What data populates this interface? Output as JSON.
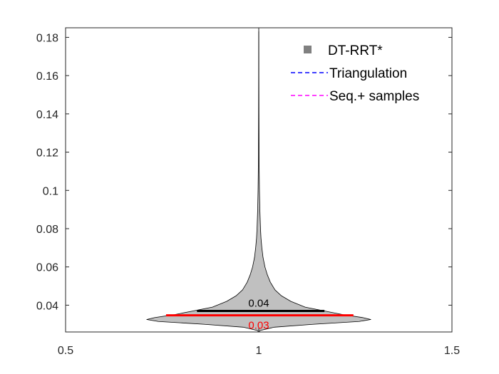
{
  "chart_data": {
    "type": "violin",
    "title": "",
    "xlabel": "",
    "ylabel": "",
    "xlim": [
      0.5,
      1.5
    ],
    "ylim": [
      0.026,
      0.185
    ],
    "x_ticks": [
      0.5,
      1,
      1.5
    ],
    "x_tick_labels": [
      "0.5",
      "1",
      "1.5"
    ],
    "y_ticks": [
      0.04,
      0.06,
      0.08,
      0.1,
      0.12,
      0.14,
      0.16,
      0.18
    ],
    "y_tick_labels": [
      "0.04",
      "0.06",
      "0.08",
      "0.1",
      "0.12",
      "0.14",
      "0.16",
      "0.18"
    ],
    "grid": false,
    "legend_position": "top-right",
    "legend": [
      {
        "label": "DT-RRT*",
        "marker": "square",
        "color": "#808080"
      },
      {
        "label": "Triangulation",
        "marker": "dashed-line",
        "color": "#0000ff"
      },
      {
        "label": "Seq.+ samples",
        "marker": "dashed-line",
        "color": "#ff00ff"
      }
    ],
    "series": [
      {
        "name": "DT-RRT*",
        "position": 1,
        "fill_color": "#c0c0c0",
        "min": 0.026,
        "max": 0.185,
        "density_profile": [
          {
            "y": 0.026,
            "half_width": 0.0
          },
          {
            "y": 0.0268,
            "half_width": 0.004
          },
          {
            "y": 0.0285,
            "half_width": 0.04
          },
          {
            "y": 0.03,
            "half_width": 0.14
          },
          {
            "y": 0.0315,
            "half_width": 0.26
          },
          {
            "y": 0.0325,
            "half_width": 0.29
          },
          {
            "y": 0.0335,
            "half_width": 0.27
          },
          {
            "y": 0.035,
            "half_width": 0.22
          },
          {
            "y": 0.037,
            "half_width": 0.17
          },
          {
            "y": 0.039,
            "half_width": 0.12
          },
          {
            "y": 0.042,
            "half_width": 0.083
          },
          {
            "y": 0.045,
            "half_width": 0.058
          },
          {
            "y": 0.048,
            "half_width": 0.042
          },
          {
            "y": 0.052,
            "half_width": 0.03
          },
          {
            "y": 0.056,
            "half_width": 0.022
          },
          {
            "y": 0.06,
            "half_width": 0.016
          },
          {
            "y": 0.065,
            "half_width": 0.011
          },
          {
            "y": 0.07,
            "half_width": 0.008
          },
          {
            "y": 0.075,
            "half_width": 0.0058
          },
          {
            "y": 0.08,
            "half_width": 0.0045
          },
          {
            "y": 0.09,
            "half_width": 0.0028
          },
          {
            "y": 0.1,
            "half_width": 0.0018
          },
          {
            "y": 0.11,
            "half_width": 0.0012
          },
          {
            "y": 0.12,
            "half_width": 0.0008
          },
          {
            "y": 0.14,
            "half_width": 0.0005
          },
          {
            "y": 0.16,
            "half_width": 0.0003
          },
          {
            "y": 0.185,
            "half_width": 0.0002
          }
        ]
      }
    ],
    "summary_lines": [
      {
        "name": "mean",
        "value": 0.037,
        "x_range": [
          0.84,
          1.17
        ],
        "color": "#000000",
        "label": "0.04",
        "label_position": "above"
      },
      {
        "name": "median",
        "value": 0.0347,
        "x_range": [
          0.76,
          1.245
        ],
        "color": "#ff0000",
        "label": "0.03",
        "label_position": "below"
      }
    ]
  }
}
